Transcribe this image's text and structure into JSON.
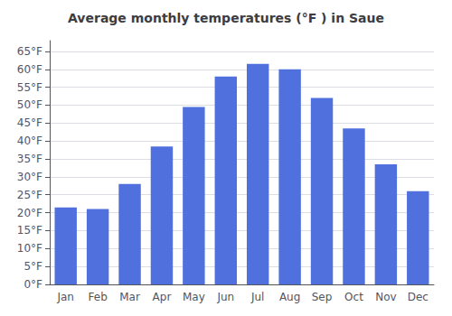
{
  "chart_data": {
    "type": "bar",
    "title": "Average monthly temperatures (°F ) in Saue",
    "categories": [
      "Jan",
      "Feb",
      "Mar",
      "Apr",
      "May",
      "Jun",
      "Jul",
      "Aug",
      "Sep",
      "Oct",
      "Nov",
      "Dec"
    ],
    "values": [
      21.5,
      21.0,
      28.0,
      38.5,
      49.5,
      58.0,
      61.5,
      60.0,
      52.0,
      43.5,
      33.5,
      26.0
    ],
    "ylim": [
      0,
      68
    ],
    "yticks": [
      {
        "value": 0,
        "label": "0°F"
      },
      {
        "value": 5,
        "label": "5°F"
      },
      {
        "value": 10,
        "label": "10°F"
      },
      {
        "value": 15,
        "label": "15°F"
      },
      {
        "value": 20,
        "label": "20°F"
      },
      {
        "value": 25,
        "label": "25°F"
      },
      {
        "value": 30,
        "label": "30°F"
      },
      {
        "value": 35,
        "label": "35°F"
      },
      {
        "value": 40,
        "label": "40°F"
      },
      {
        "value": 45,
        "label": "45°F"
      },
      {
        "value": 50,
        "label": "50°F"
      },
      {
        "value": 55,
        "label": "55°F"
      },
      {
        "value": 60,
        "label": "60°F"
      },
      {
        "value": 65,
        "label": "65°F"
      }
    ],
    "grid": true
  }
}
